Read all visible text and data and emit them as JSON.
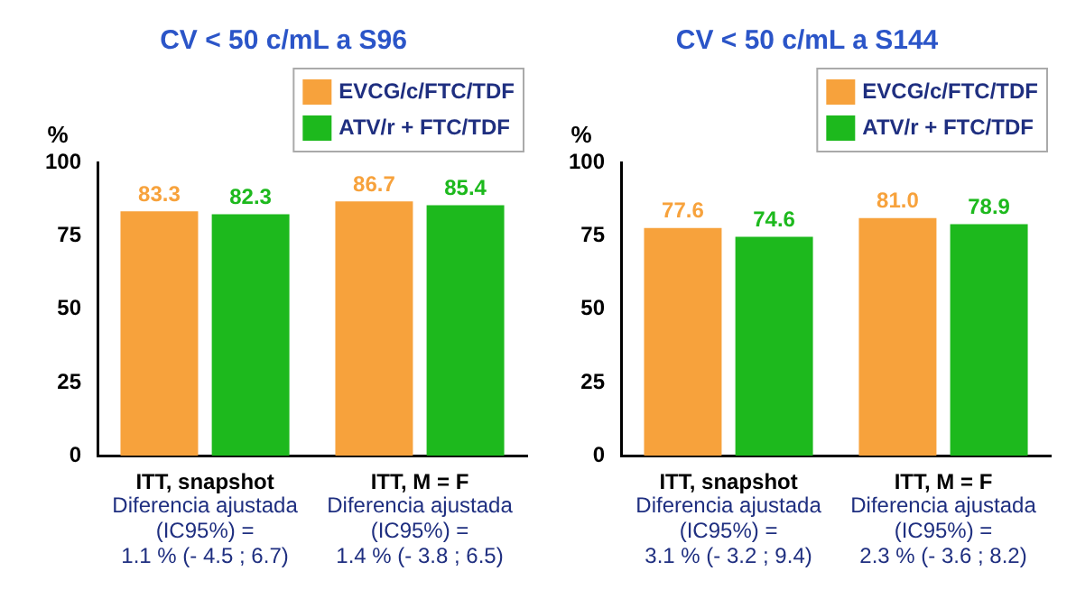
{
  "chart_data": [
    {
      "type": "bar",
      "title": "CV < 50 c/mL a S96",
      "ylabel": "%",
      "categories": [
        "ITT, snapshot",
        "ITT, M = F"
      ],
      "series": [
        {
          "name": "EVCG/c/FTC/TDF",
          "color": "#f7a23c",
          "values": [
            83.3,
            86.7
          ],
          "value_labels": [
            "83.3",
            "86.7"
          ]
        },
        {
          "name": "ATV/r + FTC/TDF",
          "color": "#1db91d",
          "values": [
            82.3,
            85.4
          ],
          "value_labels": [
            "82.3",
            "85.4"
          ]
        }
      ],
      "ylim": [
        0,
        100
      ],
      "yticks": [
        0,
        25,
        50,
        75,
        100
      ],
      "grid": false,
      "legend": "top right",
      "annotations": [
        "Diferencia ajustada\n(IC95%) =\n1.1 % (- 4.5 ; 6.7)",
        "Diferencia ajustada\n(IC95%) =\n1.4 % (- 3.8 ; 6.5)"
      ]
    },
    {
      "type": "bar",
      "title": "CV < 50 c/mL a S144",
      "ylabel": "%",
      "categories": [
        "ITT, snapshot",
        "ITT, M = F"
      ],
      "series": [
        {
          "name": "EVCG/c/FTC/TDF",
          "color": "#f7a23c",
          "values": [
            77.6,
            81.0
          ],
          "value_labels": [
            "77.6",
            "81.0"
          ]
        },
        {
          "name": "ATV/r + FTC/TDF",
          "color": "#1db91d",
          "values": [
            74.6,
            78.9
          ],
          "value_labels": [
            "74.6",
            "78.9"
          ]
        }
      ],
      "ylim": [
        0,
        100
      ],
      "yticks": [
        0,
        25,
        50,
        75,
        100
      ],
      "grid": false,
      "legend": "top right",
      "annotations": [
        "Diferencia ajustada\n(IC95%) =\n3.1 % (- 3.2 ; 9.4)",
        "Diferencia ajustada\n(IC95%) =\n2.3 % (- 3.6 ; 8.2)"
      ]
    }
  ]
}
